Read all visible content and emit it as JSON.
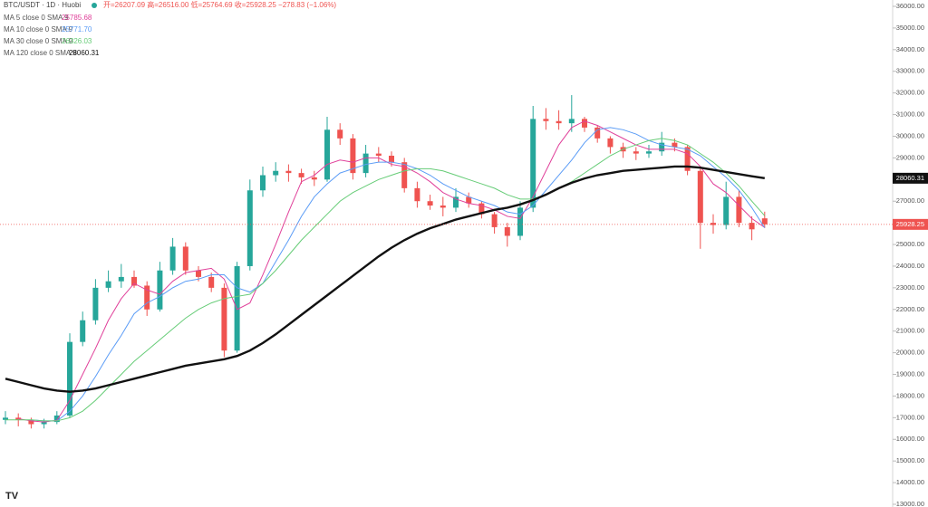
{
  "chart_data": {
    "type": "candlestick",
    "symbol": "BTC/USDT · 1D · Huobi",
    "ohlc_header": "开=26207.09 高=26516.00 低=25764.69 收=25928.25 −278.83 (−1.06%)",
    "up_color": "#26a69a",
    "down_color": "#ef5350",
    "open": [
      16900,
      17000,
      16900,
      16700,
      16800,
      17100,
      20500,
      21500,
      23000,
      23300,
      23500,
      23100,
      22000,
      23800,
      24900,
      23800,
      23500,
      23000,
      20100,
      24000,
      27500,
      28200,
      28400,
      28300,
      28100,
      28000,
      30300,
      29900,
      28300,
      29200,
      29100,
      28800,
      27600,
      27000,
      26800,
      26700,
      27200,
      26900,
      26400,
      25800,
      25400,
      26700,
      30800,
      30700,
      30600,
      30800,
      30400,
      29900,
      29500,
      29300,
      29200,
      29300,
      29700,
      29500,
      28400,
      26000,
      25900,
      27200,
      26000,
      26207.09
    ],
    "high": [
      17300,
      17200,
      17000,
      16950,
      17300,
      20900,
      21900,
      23400,
      23800,
      24100,
      23800,
      23300,
      24200,
      25300,
      25100,
      24000,
      23700,
      23200,
      24200,
      28000,
      28600,
      28800,
      28700,
      28500,
      28400,
      30900,
      30600,
      30100,
      29600,
      29500,
      29300,
      29000,
      27900,
      27300,
      27200,
      27600,
      27400,
      27000,
      26500,
      26000,
      27000,
      31400,
      31300,
      31200,
      31900,
      30900,
      30500,
      30000,
      29700,
      29500,
      29600,
      30200,
      29900,
      29600,
      28500,
      26400,
      27900,
      27500,
      26300,
      26516
    ],
    "low": [
      16700,
      16600,
      16500,
      16500,
      16700,
      17000,
      20300,
      21300,
      22800,
      23000,
      23000,
      21700,
      21900,
      23600,
      23600,
      23300,
      22800,
      19800,
      20000,
      23800,
      27200,
      27900,
      27900,
      27800,
      27700,
      27900,
      29600,
      28000,
      28100,
      28800,
      28600,
      27400,
      26700,
      26600,
      26300,
      26500,
      26700,
      26200,
      25500,
      24900,
      25200,
      26500,
      30300,
      30300,
      30200,
      30200,
      29700,
      29200,
      29000,
      28900,
      29000,
      29100,
      29300,
      28200,
      24800,
      25500,
      25700,
      25800,
      25200,
      25764.69
    ],
    "close": [
      17000,
      16900,
      16700,
      16800,
      17100,
      20500,
      21500,
      23000,
      23300,
      23500,
      23100,
      22000,
      23800,
      24900,
      23800,
      23500,
      23000,
      20100,
      24000,
      27500,
      28200,
      28400,
      28300,
      28100,
      28000,
      30300,
      29900,
      28300,
      29200,
      29100,
      28800,
      27600,
      27000,
      26800,
      26700,
      27200,
      26900,
      26400,
      25800,
      25400,
      26700,
      30800,
      30700,
      30600,
      30800,
      30400,
      29900,
      29500,
      29300,
      29200,
      29300,
      29700,
      29500,
      28400,
      26000,
      25900,
      27200,
      26000,
      25700,
      25928.25
    ],
    "series": [
      {
        "name": "MA 5 close 0 SMA 9",
        "color": "#e0409a",
        "last_value_label": "25785.68",
        "values": [
          null,
          16950,
          16850,
          16800,
          16880,
          17800,
          19000,
          20200,
          21500,
          22500,
          23200,
          22900,
          22700,
          23300,
          23700,
          23800,
          23900,
          23400,
          22000,
          22300,
          23600,
          25000,
          26500,
          27900,
          28200,
          28700,
          28900,
          28800,
          29000,
          29000,
          28700,
          28600,
          28300,
          27900,
          27400,
          27100,
          26900,
          26800,
          26600,
          26300,
          26200,
          27200,
          28400,
          29600,
          30400,
          30700,
          30500,
          30200,
          29900,
          29600,
          29400,
          29400,
          29400,
          29200,
          28600,
          27800,
          27400,
          26800,
          26200,
          25785.68
        ]
      },
      {
        "name": "MA 10 close 0 SMA 9",
        "color": "#5b9cf6",
        "last_value_label": "25771.70",
        "values": [
          null,
          null,
          16900,
          16850,
          16850,
          17300,
          18000,
          18900,
          19900,
          20800,
          21800,
          22300,
          22600,
          23000,
          23300,
          23400,
          23600,
          23600,
          23000,
          22800,
          23200,
          24200,
          25200,
          26300,
          27200,
          27800,
          28300,
          28500,
          28700,
          28800,
          28800,
          28700,
          28500,
          28200,
          27800,
          27500,
          27200,
          27000,
          26800,
          26500,
          26400,
          26800,
          27500,
          28200,
          28900,
          29700,
          30300,
          30400,
          30300,
          30100,
          29800,
          29600,
          29500,
          29400,
          29100,
          28600,
          28100,
          27500,
          26700,
          25771.7
        ]
      },
      {
        "name": "MA 30 close 0 SMA 9",
        "color": "#66cc77",
        "last_value_label": "26326.03",
        "values": [
          16900,
          16900,
          16900,
          16850,
          16850,
          17000,
          17300,
          17800,
          18400,
          19000,
          19600,
          20100,
          20600,
          21100,
          21600,
          22000,
          22300,
          22500,
          22600,
          22700,
          23200,
          23800,
          24500,
          25200,
          25800,
          26400,
          27000,
          27400,
          27700,
          28000,
          28200,
          28400,
          28500,
          28500,
          28400,
          28200,
          28000,
          27800,
          27600,
          27300,
          27100,
          27100,
          27300,
          27600,
          27900,
          28300,
          28700,
          29100,
          29400,
          29600,
          29800,
          29900,
          29800,
          29600,
          29200,
          28800,
          28300,
          27700,
          27000,
          26326.03
        ]
      },
      {
        "name": "MA 120 close 0 SMA 9",
        "color": "#111111",
        "last_value_label": "28060.31",
        "values": [
          18800,
          18650,
          18500,
          18350,
          18250,
          18200,
          18250,
          18350,
          18500,
          18650,
          18800,
          18950,
          19100,
          19250,
          19400,
          19500,
          19600,
          19700,
          19850,
          20100,
          20450,
          20850,
          21300,
          21750,
          22200,
          22650,
          23100,
          23550,
          24000,
          24450,
          24850,
          25200,
          25500,
          25750,
          25950,
          26150,
          26300,
          26450,
          26600,
          26700,
          26850,
          27050,
          27300,
          27600,
          27850,
          28050,
          28200,
          28300,
          28400,
          28450,
          28500,
          28550,
          28600,
          28600,
          28550,
          28450,
          28350,
          28250,
          28150,
          28060.31
        ]
      }
    ],
    "ylim": [
      13000,
      36000
    ],
    "yticks": [
      {
        "value": 13000,
        "label": "13000.00"
      },
      {
        "value": 14000,
        "label": "14000.00"
      },
      {
        "value": 15000,
        "label": "15000.00"
      },
      {
        "value": 16000,
        "label": "16000.00"
      },
      {
        "value": 17000,
        "label": "17000.00"
      },
      {
        "value": 18000,
        "label": "18000.00"
      },
      {
        "value": 19000,
        "label": "19000.00"
      },
      {
        "value": 20000,
        "label": "20000.00"
      },
      {
        "value": 21000,
        "label": "21000.00"
      },
      {
        "value": 22000,
        "label": "22000.00"
      },
      {
        "value": 23000,
        "label": "23000.00"
      },
      {
        "value": 24000,
        "label": "24000.00"
      },
      {
        "value": 25000,
        "label": "25000.00"
      },
      {
        "value": 26000,
        "label": "26000.00"
      },
      {
        "value": 27000,
        "label": "27000.00"
      },
      {
        "value": 28000,
        "label": "28000.00"
      },
      {
        "value": 29000,
        "label": "29000.00"
      },
      {
        "value": 30000,
        "label": "30000.00"
      },
      {
        "value": 31000,
        "label": "31000.00"
      },
      {
        "value": 32000,
        "label": "32000.00"
      },
      {
        "value": 33000,
        "label": "33000.00"
      },
      {
        "value": 34000,
        "label": "34000.00"
      },
      {
        "value": 35000,
        "label": "35000.00"
      },
      {
        "value": 36000,
        "label": "36000.00"
      }
    ]
  }
}
